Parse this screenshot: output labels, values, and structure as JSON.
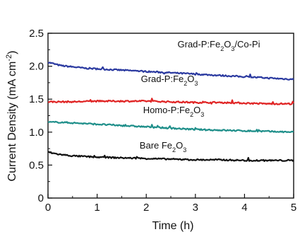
{
  "chart_data": {
    "type": "line",
    "title": "",
    "xlabel": "Time (h)",
    "ylabel": "Current Density (mA cm-2)",
    "xlim": [
      0,
      5
    ],
    "ylim": [
      0,
      2.5
    ],
    "xticks": [
      0,
      1,
      2,
      3,
      4,
      5
    ],
    "xtick_labels": [
      "0",
      "1",
      "2",
      "3",
      "4",
      "5"
    ],
    "yticks": [
      0,
      0.5,
      1.0,
      1.5,
      2.0,
      2.5
    ],
    "ytick_labels": [
      "0",
      "0.5",
      "1.0",
      "1.5",
      "2.0",
      "2.5"
    ],
    "grid": false,
    "legend": "none",
    "series": [
      {
        "name": "Grad-P:Fe2O3/Co-Pi",
        "label_parts": [
          "Grad-P:Fe",
          "2",
          "O",
          "3",
          "/Co-Pi"
        ],
        "color": "#2b3aa0",
        "x": [
          0,
          0.1,
          0.25,
          0.5,
          0.75,
          1,
          1.5,
          2,
          2.5,
          3,
          3.5,
          4,
          4.5,
          5
        ],
        "values": [
          2.06,
          2.04,
          2.01,
          1.99,
          1.97,
          1.96,
          1.94,
          1.92,
          1.9,
          1.88,
          1.86,
          1.84,
          1.82,
          1.8
        ]
      },
      {
        "name": "Grad-P:Fe2O3",
        "label_parts": [
          "Grad-P:Fe",
          "2",
          "O",
          "3",
          ""
        ],
        "color": "#e02424",
        "x": [
          0,
          0.5,
          1,
          1.5,
          2,
          2.5,
          3,
          3.5,
          4,
          4.5,
          5
        ],
        "values": [
          1.46,
          1.46,
          1.47,
          1.47,
          1.47,
          1.46,
          1.45,
          1.45,
          1.44,
          1.43,
          1.43
        ]
      },
      {
        "name": "Homo-P:Fe2O3",
        "label_parts": [
          "Homo-P:Fe",
          "2",
          "O",
          "3",
          ""
        ],
        "color": "#1f8f8a",
        "x": [
          0,
          0.25,
          0.5,
          1,
          1.5,
          2,
          2.5,
          3,
          3.5,
          4,
          4.5,
          5
        ],
        "values": [
          1.15,
          1.15,
          1.14,
          1.12,
          1.1,
          1.08,
          1.06,
          1.04,
          1.03,
          1.02,
          1.01,
          1.0
        ]
      },
      {
        "name": "Bare Fe2O3",
        "label_parts": [
          "Bare Fe",
          "2",
          "O",
          "3",
          ""
        ],
        "color": "#111111",
        "x": [
          0,
          0.1,
          0.25,
          0.5,
          1,
          1.5,
          2,
          2.5,
          3,
          3.5,
          4,
          4.5,
          5
        ],
        "values": [
          0.7,
          0.68,
          0.66,
          0.64,
          0.62,
          0.61,
          0.6,
          0.59,
          0.58,
          0.58,
          0.57,
          0.57,
          0.57
        ]
      }
    ]
  }
}
